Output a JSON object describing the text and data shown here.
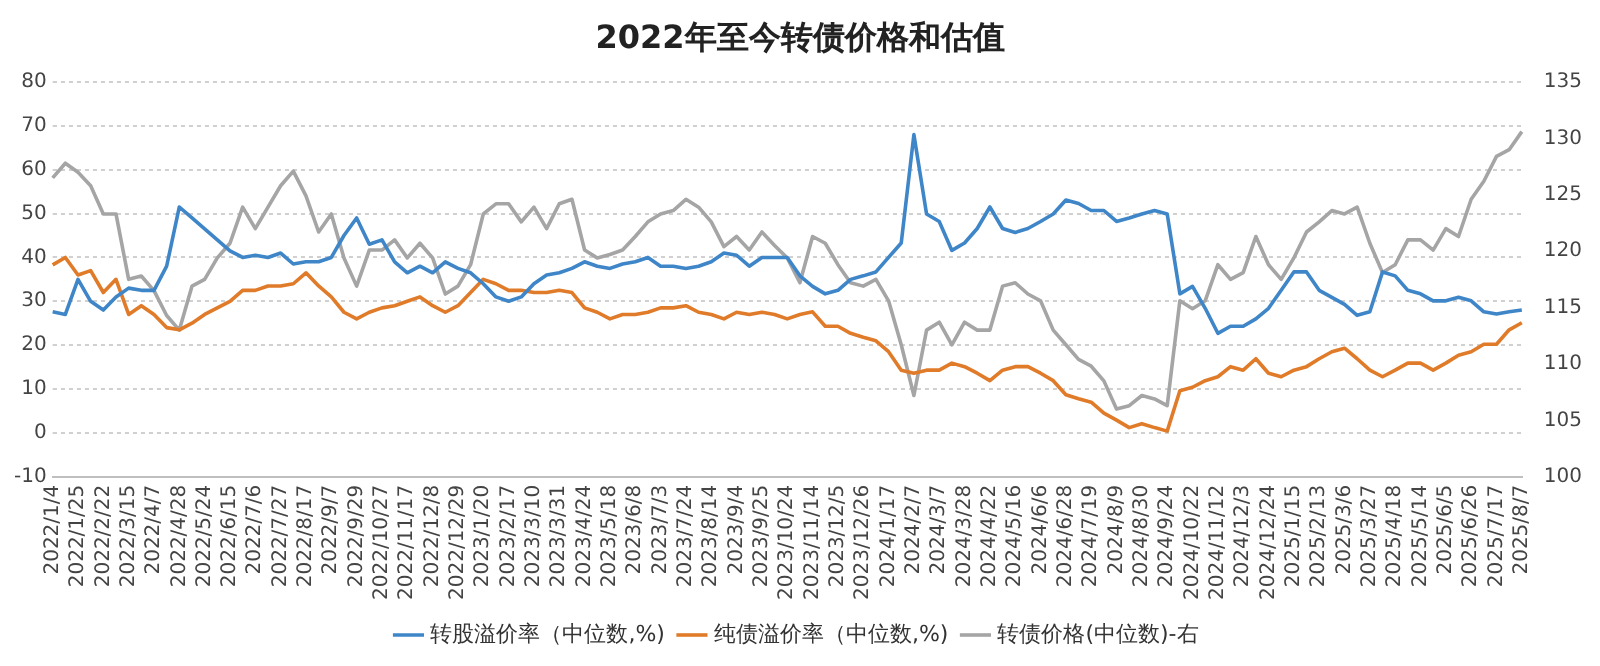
{
  "chart_data": {
    "type": "line",
    "title": "2022年至今转债价格和估值",
    "categories": [
      "2022/1/4",
      null,
      "2022/1/25",
      null,
      "2022/2/22",
      null,
      "2022/3/15",
      null,
      "2022/4/7",
      null,
      "2022/4/28",
      null,
      "2022/5/24",
      null,
      "2022/6/15",
      null,
      "2022/7/6",
      null,
      "2022/7/27",
      null,
      "2022/8/17",
      null,
      "2022/9/7",
      null,
      "2022/9/29",
      null,
      "2022/10/27",
      null,
      "2022/11/17",
      null,
      "2022/12/8",
      null,
      "2022/12/29",
      null,
      "2023/1/20",
      null,
      "2023/2/17",
      null,
      "2023/3/10",
      null,
      "2023/3/31",
      null,
      "2023/4/24",
      null,
      "2023/5/18",
      null,
      "2023/6/8",
      null,
      "2023/7/3",
      null,
      "2023/7/24",
      null,
      "2023/8/14",
      null,
      "2023/9/4",
      null,
      "2023/9/25",
      null,
      "2023/10/24",
      null,
      "2023/11/14",
      null,
      "2023/12/5",
      null,
      "2023/12/26",
      null,
      "2024/1/17",
      null,
      "2024/2/7",
      null,
      "2024/3/7",
      null,
      "2024/3/28",
      null,
      "2024/4/22",
      null,
      "2024/5/16",
      null,
      "2024/6/6",
      null,
      "2024/6/28",
      null,
      "2024/7/19",
      null,
      "2024/8/9",
      null,
      "2024/8/30",
      null,
      "2024/9/24",
      null,
      "2024/10/22",
      null,
      "2024/11/12",
      null,
      "2024/12/3",
      null,
      "2024/12/24",
      null,
      "2025/1/15",
      null,
      "2025/2/13",
      null,
      "2025/3/6",
      null,
      "2025/3/27",
      null,
      "2025/4/18",
      null,
      "2025/5/14",
      null,
      "2025/6/5",
      null,
      "2025/6/26",
      null,
      "2025/7/17",
      null,
      "2025/8/7"
    ],
    "series": [
      {
        "name": "转股溢价率（中位数,%)",
        "color": "#3f86c8",
        "values": [
          27.6,
          27,
          35,
          30,
          28,
          31,
          33,
          32.5,
          32.5,
          38,
          51.5,
          49,
          46.5,
          44,
          41.5,
          40,
          40.5,
          40,
          41,
          38.5,
          39,
          39,
          40,
          45,
          49,
          43,
          44,
          39,
          36.5,
          38,
          36.5,
          39,
          37.5,
          36.5,
          34,
          31,
          30,
          31,
          34,
          36,
          36.5,
          37.5,
          39,
          38,
          37.5,
          38.5,
          39,
          40,
          38,
          38,
          37.5,
          38,
          39,
          41,
          40.5,
          38,
          40,
          40,
          40,
          35.8,
          33.4,
          31.7,
          32.5,
          35,
          35.8,
          36.7,
          40,
          43.3,
          68,
          49.9,
          48.2,
          41.6,
          43.3,
          46.6,
          51.5,
          46.6,
          45.7,
          46.6,
          48.2,
          49.9,
          53.1,
          52.3,
          50.7,
          50.7,
          48.2,
          49,
          49.9,
          50.7,
          49.9,
          31.7,
          33.4,
          28.4,
          22.7,
          24.3,
          24.3,
          26,
          28.4,
          32.5,
          36.7,
          36.7,
          32.5,
          30.9,
          29.3,
          26.8,
          27.6,
          36.7,
          35.8,
          32.5,
          31.7,
          30.1,
          30.1,
          30.9,
          30.1,
          27.6,
          27.1,
          27.6,
          28
        ]
      },
      {
        "name": "纯债溢价率（中位数,%)",
        "color": "#e07b2a",
        "values": [
          38.3,
          40,
          36,
          37,
          32,
          35,
          27,
          29,
          27,
          24,
          23.5,
          25,
          27,
          28.5,
          30,
          32.5,
          32.5,
          33.5,
          33.5,
          34,
          36.5,
          33.5,
          31,
          27.5,
          26,
          27.5,
          28.5,
          29,
          30,
          31,
          29,
          27.5,
          29,
          32,
          35,
          34,
          32.5,
          32.5,
          32,
          32,
          32.5,
          32,
          28.5,
          27.5,
          26,
          27,
          27,
          27.5,
          28.5,
          28.5,
          29,
          27.5,
          27,
          26,
          27.5,
          27,
          27.5,
          27,
          26,
          27,
          27.6,
          24.3,
          24.3,
          22.7,
          21.8,
          21,
          18.5,
          14.3,
          13.6,
          14.3,
          14.3,
          15.9,
          15.1,
          13.6,
          11.9,
          14.3,
          15.1,
          15.1,
          13.6,
          11.9,
          8.7,
          7.8,
          7,
          4.5,
          2.9,
          1.2,
          2.1,
          1.2,
          0.4,
          9.6,
          10.4,
          11.9,
          12.8,
          15.1,
          14.3,
          16.9,
          13.6,
          12.8,
          14.3,
          15.1,
          16.9,
          18.5,
          19.3,
          16.9,
          14.3,
          12.8,
          14.3,
          15.9,
          15.9,
          14.3,
          15.9,
          17.7,
          18.5,
          20.2,
          20.2,
          23.5,
          25.1
        ]
      },
      {
        "name": "转债价格(中位数)-右",
        "color": "#a5a5a5",
        "axis": "y2",
        "values": [
          126.5,
          127.8,
          127,
          125.8,
          123.3,
          123.3,
          117.5,
          117.8,
          116.5,
          114.3,
          113,
          116.9,
          117.5,
          119.4,
          120.7,
          123.9,
          122,
          123.9,
          125.8,
          127.1,
          124.9,
          121.7,
          123.3,
          119.4,
          116.9,
          120.1,
          120.1,
          121,
          119.4,
          120.7,
          119.4,
          116.2,
          116.9,
          118.8,
          123.3,
          124.2,
          124.2,
          122.6,
          123.9,
          122,
          124.2,
          124.6,
          120.1,
          119.4,
          119.7,
          120.1,
          121.3,
          122.6,
          123.3,
          123.6,
          124.6,
          123.9,
          122.6,
          120.4,
          121.3,
          120.1,
          121.7,
          120.5,
          119.4,
          117.2,
          121.3,
          120.7,
          118.8,
          117.2,
          116.9,
          117.5,
          115.6,
          111.7,
          107.2,
          113,
          113.7,
          111.7,
          113.7,
          113,
          113,
          116.9,
          117.2,
          116.2,
          115.6,
          113,
          111.7,
          110.4,
          109.8,
          108.5,
          106,
          106.3,
          107.2,
          106.9,
          106.3,
          115.6,
          114.9,
          115.6,
          118.8,
          117.5,
          118.1,
          121.3,
          118.8,
          117.5,
          119.4,
          121.7,
          122.6,
          123.6,
          123.3,
          123.9,
          120.7,
          118.1,
          118.8,
          121,
          121,
          120.1,
          122,
          121.3,
          124.6,
          126.2,
          128.4,
          129,
          130.6
        ]
      }
    ],
    "ylim": [
      -10,
      80
    ],
    "yticks": [
      -10,
      0,
      10,
      20,
      30,
      40,
      50,
      60,
      70,
      80
    ],
    "y2lim": [
      100,
      135
    ],
    "y2ticks": [
      100,
      105,
      110,
      115,
      120,
      125,
      130,
      135
    ],
    "grid": "y",
    "legend": "bottom",
    "marker": "none",
    "line_style": "solid"
  }
}
